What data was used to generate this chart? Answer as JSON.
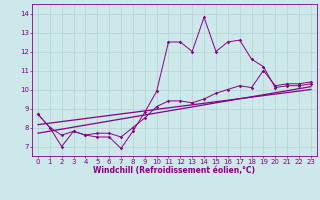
{
  "xlabel": "Windchill (Refroidissement éolien,°C)",
  "xlim": [
    -0.5,
    23.5
  ],
  "ylim": [
    6.5,
    14.5
  ],
  "xticks": [
    0,
    1,
    2,
    3,
    4,
    5,
    6,
    7,
    8,
    9,
    10,
    11,
    12,
    13,
    14,
    15,
    16,
    17,
    18,
    19,
    20,
    21,
    22,
    23
  ],
  "yticks": [
    7,
    8,
    9,
    10,
    11,
    12,
    13,
    14
  ],
  "bg_color": "#cce8e8",
  "line_color": "#880088",
  "series_main": [
    8.7,
    8.0,
    7.0,
    7.8,
    7.6,
    7.5,
    7.5,
    6.9,
    7.8,
    8.8,
    9.9,
    12.5,
    12.5,
    12.0,
    13.8,
    12.0,
    12.5,
    12.6,
    11.6,
    11.2,
    10.1,
    10.2,
    10.2,
    10.3
  ],
  "series2": [
    8.7,
    8.0,
    7.6,
    7.8,
    7.6,
    7.7,
    7.7,
    7.5,
    8.0,
    8.5,
    9.1,
    9.4,
    9.4,
    9.3,
    9.5,
    9.8,
    10.0,
    10.2,
    10.1,
    11.0,
    10.2,
    10.3,
    10.3,
    10.4
  ],
  "trend1_x": [
    0,
    23
  ],
  "trend1_y": [
    7.7,
    10.15
  ],
  "trend2_x": [
    0,
    23
  ],
  "trend2_y": [
    8.15,
    10.0
  ]
}
